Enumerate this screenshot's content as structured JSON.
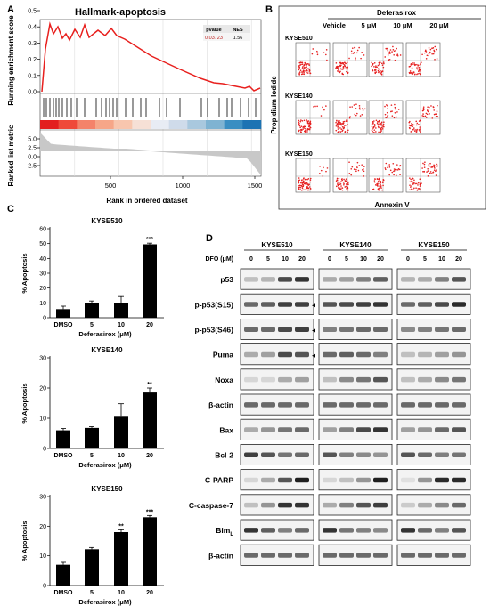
{
  "panels": {
    "A": "A",
    "B": "B",
    "C": "C",
    "D": "D"
  },
  "gsea": {
    "title": "Hallmark-apoptosis",
    "ylabel_top": "Running enrichment score",
    "ylabel_bottom": "Ranked list metric",
    "xlabel": "Rank in ordered dataset",
    "yticks_top": [
      "0.5",
      "0.4",
      "0.3",
      "0.2",
      "0.1",
      "0.0"
    ],
    "yticks_bottom": [
      "5.0",
      "2.5",
      "0.0",
      "-2.5"
    ],
    "xticks": [
      "500",
      "1000",
      "1500"
    ],
    "table": {
      "h1": "pvalue",
      "h2": "NES",
      "v1": "0.03723",
      "v2": "1.56"
    }
  },
  "flow": {
    "treatment": "Deferasirox",
    "conditions": [
      "Vehicle",
      "5 μM",
      "10 μM",
      "20 μM"
    ],
    "lines": [
      "KYSE510",
      "KYSE140",
      "KYSE150"
    ],
    "ylabel": "Propidium Iodide",
    "xlabel": "Annexin V"
  },
  "bars": {
    "ylabel": "% Apoptosis",
    "xlabel": "Deferasirox (μM)",
    "categories": [
      "DMSO",
      "5",
      "10",
      "20"
    ]
  },
  "chart_data": [
    {
      "type": "bar",
      "title": "KYSE510",
      "categories": [
        "DMSO",
        "5",
        "10",
        "20"
      ],
      "values": [
        5.8,
        9.8,
        9.8,
        49.5
      ],
      "errors": [
        2.0,
        1.5,
        4.5,
        0.8
      ],
      "ylim": [
        0,
        60
      ],
      "yticks": [
        "0",
        "10",
        "20",
        "30",
        "40",
        "50",
        "60"
      ],
      "sig": "***",
      "xlabel": "Deferasirox (μM)",
      "ylabel": "% Apoptosis"
    },
    {
      "type": "bar",
      "title": "KYSE140",
      "categories": [
        "DMSO",
        "5",
        "10",
        "20"
      ],
      "values": [
        6.0,
        6.8,
        10.5,
        18.5
      ],
      "errors": [
        0.6,
        0.4,
        4.3,
        1.5
      ],
      "ylim": [
        0,
        30
      ],
      "yticks": [
        "0",
        "10",
        "20",
        "30"
      ],
      "sig": "**",
      "xlabel": "Deferasirox (μM)",
      "ylabel": "% Apoptosis"
    },
    {
      "type": "bar",
      "title": "KYSE150",
      "categories": [
        "DMSO",
        "5",
        "10",
        "20"
      ],
      "values": [
        7.0,
        12.2,
        18.0,
        23.0
      ],
      "errors": [
        0.8,
        0.6,
        0.8,
        0.6
      ],
      "ylim": [
        0,
        30
      ],
      "yticks": [
        "0",
        "10",
        "20",
        "30"
      ],
      "sig": [
        "",
        "",
        "**",
        "***"
      ],
      "xlabel": "Deferasirox (μM)",
      "ylabel": "% Apoptosis"
    }
  ],
  "western": {
    "lines": [
      "KYSE510",
      "KYSE140",
      "KYSE150"
    ],
    "dose_label": "DFO (μM)",
    "doses": [
      "0",
      "5",
      "10",
      "20"
    ],
    "proteins": [
      "p53",
      "p-p53(S15)",
      "p-p53(S46)",
      "Puma",
      "Noxa",
      "β-actin",
      "Bax",
      "Bcl-2",
      "C-PARP",
      "C-caspase-7",
      "Bim",
      "β-actin"
    ],
    "bim_sub": "L"
  }
}
